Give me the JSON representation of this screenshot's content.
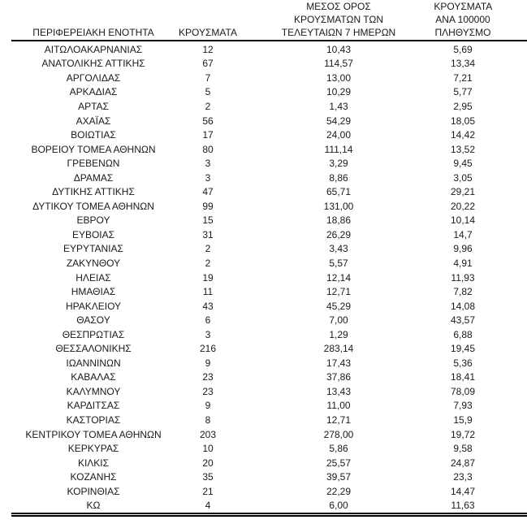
{
  "colors": {
    "background": "#ffffff",
    "text": "#1a1a1a",
    "rule": "#000000"
  },
  "table": {
    "columns": [
      {
        "id": "region",
        "label": "ΠΕΡΙΦΕΡΕΙΑΚΗ ΕΝΟΤΗΤΑ"
      },
      {
        "id": "cases",
        "label": "ΚΡΟΥΣΜΑΤΑ"
      },
      {
        "id": "avg7",
        "label": "ΜΕΣΟΣ ΟΡΟΣ\nΚΡΟΥΣΜΑΤΩΝ ΤΩΝ\nΤΕΛΕΥΤΑΙΩΝ 7 ΗΜΕΡΩΝ"
      },
      {
        "id": "per100k",
        "label": "ΚΡΟΥΣΜΑΤΑ ΑΝΑ 100000\nΠΛΗΘΥΣΜΟ"
      }
    ],
    "rows": [
      {
        "region": "ΑΙΤΩΛΟΑΚΑΡΝΑΝΙΑΣ",
        "cases": "12",
        "avg7": "10,43",
        "per100k": "5,69"
      },
      {
        "region": "ΑΝΑΤΟΛΙΚΗΣ ΑΤΤΙΚΗΣ",
        "cases": "67",
        "avg7": "114,57",
        "per100k": "13,34"
      },
      {
        "region": "ΑΡΓΟΛΙΔΑΣ",
        "cases": "7",
        "avg7": "13,00",
        "per100k": "7,21"
      },
      {
        "region": "ΑΡΚΑΔΙΑΣ",
        "cases": "5",
        "avg7": "10,29",
        "per100k": "5,77"
      },
      {
        "region": "ΑΡΤΑΣ",
        "cases": "2",
        "avg7": "1,43",
        "per100k": "2,95"
      },
      {
        "region": "ΑΧΑΪΑΣ",
        "cases": "56",
        "avg7": "54,29",
        "per100k": "18,05"
      },
      {
        "region": "ΒΟΙΩΤΙΑΣ",
        "cases": "17",
        "avg7": "24,00",
        "per100k": "14,42"
      },
      {
        "region": "ΒΟΡΕΙΟΥ ΤΟΜΕΑ ΑΘΗΝΩΝ",
        "cases": "80",
        "avg7": "111,14",
        "per100k": "13,52"
      },
      {
        "region": "ΓΡΕΒΕΝΩΝ",
        "cases": "3",
        "avg7": "3,29",
        "per100k": "9,45"
      },
      {
        "region": "ΔΡΑΜΑΣ",
        "cases": "3",
        "avg7": "8,86",
        "per100k": "3,05"
      },
      {
        "region": "ΔΥΤΙΚΗΣ ΑΤΤΙΚΗΣ",
        "cases": "47",
        "avg7": "65,71",
        "per100k": "29,21"
      },
      {
        "region": "ΔΥΤΙΚΟΥ ΤΟΜΕΑ ΑΘΗΝΩΝ",
        "cases": "99",
        "avg7": "131,00",
        "per100k": "20,22"
      },
      {
        "region": "ΕΒΡΟΥ",
        "cases": "15",
        "avg7": "18,86",
        "per100k": "10,14"
      },
      {
        "region": "ΕΥΒΟΙΑΣ",
        "cases": "31",
        "avg7": "26,29",
        "per100k": "14,7"
      },
      {
        "region": "ΕΥΡΥΤΑΝΙΑΣ",
        "cases": "2",
        "avg7": "3,43",
        "per100k": "9,96"
      },
      {
        "region": "ΖΑΚΥΝΘΟΥ",
        "cases": "2",
        "avg7": "5,57",
        "per100k": "4,91"
      },
      {
        "region": "ΗΛΕΙΑΣ",
        "cases": "19",
        "avg7": "12,14",
        "per100k": "11,93"
      },
      {
        "region": "ΗΜΑΘΙΑΣ",
        "cases": "11",
        "avg7": "12,71",
        "per100k": "7,82"
      },
      {
        "region": "ΗΡΑΚΛΕΙΟΥ",
        "cases": "43",
        "avg7": "45,29",
        "per100k": "14,08"
      },
      {
        "region": "ΘΑΣΟΥ",
        "cases": "6",
        "avg7": "7,00",
        "per100k": "43,57"
      },
      {
        "region": "ΘΕΣΠΡΩΤΙΑΣ",
        "cases": "3",
        "avg7": "1,29",
        "per100k": "6,88"
      },
      {
        "region": "ΘΕΣΣΑΛΟΝΙΚΗΣ",
        "cases": "216",
        "avg7": "283,14",
        "per100k": "19,45"
      },
      {
        "region": "ΙΩΑΝΝΙΝΩΝ",
        "cases": "9",
        "avg7": "17,43",
        "per100k": "5,36"
      },
      {
        "region": "ΚΑΒΑΛΑΣ",
        "cases": "23",
        "avg7": "37,86",
        "per100k": "18,41"
      },
      {
        "region": "ΚΑΛΥΜΝΟΥ",
        "cases": "23",
        "avg7": "13,43",
        "per100k": "78,09"
      },
      {
        "region": "ΚΑΡΔΙΤΣΑΣ",
        "cases": "9",
        "avg7": "11,00",
        "per100k": "7,93"
      },
      {
        "region": "ΚΑΣΤΟΡΙΑΣ",
        "cases": "8",
        "avg7": "12,71",
        "per100k": "15,9"
      },
      {
        "region": "ΚΕΝΤΡΙΚΟΥ ΤΟΜΕΑ ΑΘΗΝΩΝ",
        "cases": "203",
        "avg7": "278,00",
        "per100k": "19,72"
      },
      {
        "region": "ΚΕΡΚΥΡΑΣ",
        "cases": "10",
        "avg7": "5,86",
        "per100k": "9,58"
      },
      {
        "region": "ΚΙΛΚΙΣ",
        "cases": "20",
        "avg7": "25,57",
        "per100k": "24,87"
      },
      {
        "region": "ΚΟΖΑΝΗΣ",
        "cases": "35",
        "avg7": "39,57",
        "per100k": "23,3"
      },
      {
        "region": "ΚΟΡΙΝΘΙΑΣ",
        "cases": "21",
        "avg7": "22,29",
        "per100k": "14,47"
      },
      {
        "region": "ΚΩ",
        "cases": "4",
        "avg7": "6,00",
        "per100k": "11,63"
      }
    ]
  }
}
